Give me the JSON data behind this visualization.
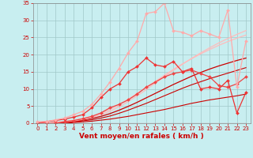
{
  "xlabel": "Vent moyen/en rafales ( km/h )",
  "xlim": [
    -0.5,
    23.5
  ],
  "ylim": [
    0,
    35
  ],
  "xticks": [
    0,
    1,
    2,
    3,
    4,
    5,
    6,
    7,
    8,
    9,
    10,
    11,
    12,
    13,
    14,
    15,
    16,
    17,
    18,
    19,
    20,
    21,
    22,
    23
  ],
  "yticks": [
    0,
    5,
    10,
    15,
    20,
    25,
    30,
    35
  ],
  "background_color": "#c8eef0",
  "grid_color": "#a0c8c8",
  "lines": [
    {
      "x": [
        0,
        1,
        2,
        3,
        4,
        5,
        6,
        7,
        8,
        9,
        10,
        11,
        12,
        13,
        14,
        15,
        16,
        17,
        18,
        19,
        20,
        21,
        22,
        23
      ],
      "y": [
        0,
        0,
        0,
        0,
        0,
        0,
        0,
        0,
        0,
        0,
        0,
        0,
        0,
        0,
        0,
        0,
        0,
        0,
        0,
        0,
        0,
        0,
        0,
        0
      ],
      "color": "#cc0000",
      "lw": 0.8,
      "marker": null,
      "ms": 0
    },
    {
      "x": [
        0,
        1,
        2,
        3,
        4,
        5,
        6,
        7,
        8,
        9,
        10,
        11,
        12,
        13,
        14,
        15,
        16,
        17,
        18,
        19,
        20,
        21,
        22,
        23
      ],
      "y": [
        0,
        0,
        0,
        0,
        0.2,
        0.4,
        0.6,
        0.9,
        1.2,
        1.6,
        2.0,
        2.5,
        3.0,
        3.5,
        4.0,
        4.6,
        5.2,
        5.8,
        6.3,
        6.8,
        7.2,
        7.6,
        8.0,
        8.5
      ],
      "color": "#cc0000",
      "lw": 0.8,
      "marker": null,
      "ms": 0
    },
    {
      "x": [
        0,
        1,
        2,
        3,
        4,
        5,
        6,
        7,
        8,
        9,
        10,
        11,
        12,
        13,
        14,
        15,
        16,
        17,
        18,
        19,
        20,
        21,
        22,
        23
      ],
      "y": [
        0,
        0,
        0.1,
        0.2,
        0.4,
        0.7,
        1.0,
        1.5,
        2.1,
        2.9,
        3.8,
        4.8,
        5.8,
        6.9,
        8.0,
        9.1,
        10.2,
        11.2,
        12.1,
        13.0,
        13.8,
        14.6,
        15.4,
        16.2
      ],
      "color": "#cc0000",
      "lw": 0.8,
      "marker": null,
      "ms": 0
    },
    {
      "x": [
        0,
        1,
        2,
        3,
        4,
        5,
        6,
        7,
        8,
        9,
        10,
        11,
        12,
        13,
        14,
        15,
        16,
        17,
        18,
        19,
        20,
        21,
        22,
        23
      ],
      "y": [
        0,
        0,
        0.2,
        0.3,
        0.6,
        0.9,
        1.4,
        2.0,
        2.8,
        3.8,
        4.9,
        6.1,
        7.4,
        8.7,
        10.0,
        11.3,
        12.5,
        13.7,
        14.8,
        15.8,
        16.7,
        17.5,
        18.3,
        19.0
      ],
      "color": "#cc0000",
      "lw": 0.9,
      "marker": null,
      "ms": 0
    },
    {
      "x": [
        0,
        1,
        2,
        3,
        4,
        5,
        6,
        7,
        8,
        9,
        10,
        11,
        12,
        13,
        14,
        15,
        16,
        17,
        18,
        19,
        20,
        21,
        22,
        23
      ],
      "y": [
        0,
        0,
        0.3,
        0.5,
        0.9,
        1.4,
        2.0,
        2.9,
        4.0,
        5.4,
        7.0,
        8.7,
        10.5,
        12.2,
        14.0,
        15.7,
        17.3,
        18.8,
        20.2,
        21.5,
        22.7,
        23.8,
        24.8,
        25.7
      ],
      "color": "#ffbbbb",
      "lw": 0.9,
      "marker": null,
      "ms": 0
    },
    {
      "x": [
        0,
        1,
        2,
        3,
        4,
        5,
        6,
        7,
        8,
        9,
        10,
        11,
        12,
        13,
        14,
        15,
        16,
        17,
        18,
        19,
        20,
        21,
        22,
        23
      ],
      "y": [
        0,
        0,
        0.2,
        0.4,
        0.7,
        1.1,
        1.7,
        2.5,
        3.5,
        4.8,
        6.3,
        8.0,
        9.8,
        11.7,
        13.6,
        15.4,
        17.2,
        18.9,
        20.5,
        22.0,
        23.4,
        24.7,
        25.9,
        27.0
      ],
      "color": "#ffbbbb",
      "lw": 0.9,
      "marker": null,
      "ms": 0
    },
    {
      "x": [
        0,
        1,
        2,
        3,
        4,
        5,
        6,
        7,
        8,
        9,
        10,
        11,
        12,
        13,
        14,
        15,
        16,
        17,
        18,
        19,
        20,
        21,
        22,
        23
      ],
      "y": [
        0,
        0,
        0,
        0.5,
        0.8,
        1.3,
        2.0,
        3.0,
        4.5,
        5.5,
        6.8,
        8.5,
        10.5,
        12.0,
        13.5,
        14.5,
        15.0,
        15.5,
        14.5,
        13.5,
        11.0,
        10.5,
        11.5,
        13.5
      ],
      "color": "#ee4444",
      "lw": 0.9,
      "marker": "D",
      "ms": 2.0
    },
    {
      "x": [
        0,
        1,
        2,
        3,
        4,
        5,
        6,
        7,
        8,
        9,
        10,
        11,
        12,
        13,
        14,
        15,
        16,
        17,
        18,
        19,
        20,
        21,
        22,
        23
      ],
      "y": [
        0,
        0.5,
        0.8,
        1.2,
        1.8,
        2.5,
        4.5,
        7.5,
        10.0,
        11.5,
        15.0,
        16.5,
        19.0,
        17.0,
        16.5,
        18.0,
        15.0,
        16.0,
        10.0,
        10.5,
        10.0,
        12.5,
        3.0,
        9.0
      ],
      "color": "#ee3333",
      "lw": 0.9,
      "marker": "D",
      "ms": 2.0
    },
    {
      "x": [
        0,
        1,
        2,
        3,
        4,
        5,
        6,
        7,
        8,
        9,
        10,
        11,
        12,
        13,
        14,
        15,
        16,
        17,
        18,
        19,
        20,
        21,
        22,
        23
      ],
      "y": [
        0.5,
        0.5,
        1.0,
        1.5,
        2.5,
        3.5,
        5.5,
        8.5,
        12.0,
        16.0,
        20.5,
        24.0,
        32.0,
        32.5,
        35.0,
        27.0,
        26.5,
        25.5,
        27.0,
        26.0,
        25.0,
        33.0,
        10.5,
        24.0
      ],
      "color": "#ffaaaa",
      "lw": 0.9,
      "marker": "D",
      "ms": 2.0
    }
  ],
  "xlabel_color": "#cc0000",
  "xlabel_fontsize": 6.5,
  "tick_color": "#cc0000",
  "tick_fontsize": 5.0
}
